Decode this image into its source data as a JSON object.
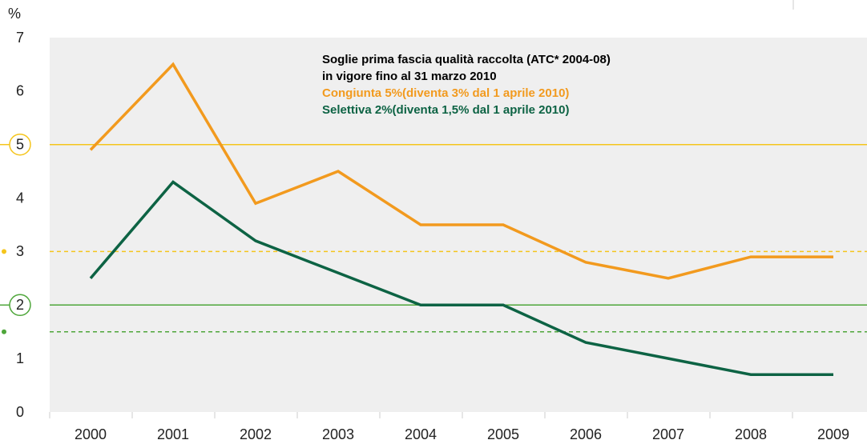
{
  "chart_data": {
    "type": "line",
    "y_label": "%",
    "categories": [
      "2000",
      "2001",
      "2002",
      "2003",
      "2004",
      "2005",
      "2006",
      "2007",
      "2008",
      "2009"
    ],
    "series": [
      {
        "name": "Congiunta",
        "color": "#f29a1e",
        "values": [
          4.9,
          6.5,
          3.9,
          4.5,
          3.5,
          3.5,
          2.8,
          2.5,
          2.9,
          2.9
        ]
      },
      {
        "name": "Selettiva",
        "color": "#0d6344",
        "values": [
          2.5,
          4.3,
          3.2,
          2.6,
          2.0,
          2.0,
          1.3,
          1.0,
          0.7,
          0.7
        ]
      }
    ],
    "ylim": [
      0,
      7
    ],
    "yticks": [
      0,
      1,
      2,
      3,
      4,
      5,
      6,
      7
    ],
    "thresholds": [
      {
        "value": 5,
        "color": "#f5c51c",
        "dashed": false,
        "marker": "circle"
      },
      {
        "value": 3,
        "color": "#f5c51c",
        "dashed": true,
        "marker": "dot"
      },
      {
        "value": 2,
        "color": "#4ea63a",
        "dashed": false,
        "marker": "circle"
      },
      {
        "value": 1.5,
        "color": "#4ea63a",
        "dashed": true,
        "marker": "dot"
      }
    ],
    "annotations": [
      {
        "text": "Soglie prima fascia qualità raccolta (ATC* 2004-08)",
        "color": "#000000"
      },
      {
        "text": "in vigore fino al 31 marzo 2010",
        "color": "#000000"
      },
      {
        "text": "Congiunta 5%(diventa 3% dal 1 aprile 2010)",
        "color": "#f29a1e"
      },
      {
        "text": "Selettiva 2%(diventa 1,5% dal 1 aprile 2010)",
        "color": "#0d6344"
      }
    ]
  }
}
